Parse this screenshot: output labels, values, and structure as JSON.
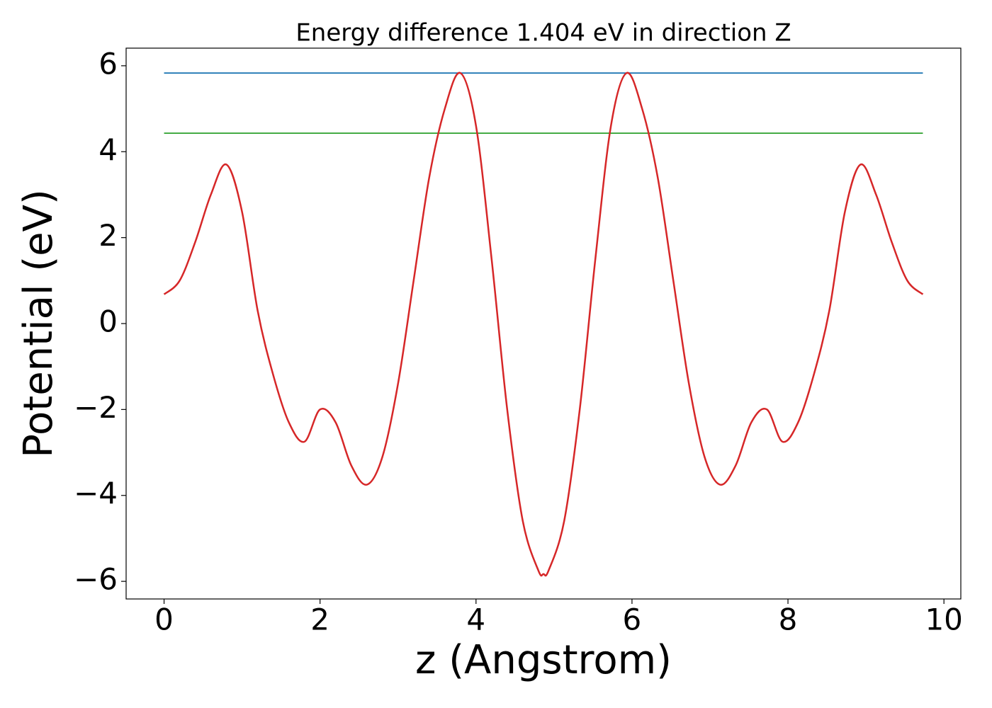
{
  "chart_data": {
    "type": "line",
    "title": "Energy difference 1.404 eV in direction Z",
    "x_label": "z (Angstrom)",
    "y_label": "Potential (eV)",
    "xlim": [
      -0.4865,
      10.2165
    ],
    "ylim": [
      -6.41,
      6.41
    ],
    "xticks": [
      0,
      2,
      4,
      6,
      8,
      10
    ],
    "yticks": [
      {
        "value": -6,
        "label": "−6"
      },
      {
        "value": -4,
        "label": "−4"
      },
      {
        "value": -2,
        "label": "−2"
      },
      0,
      2,
      4,
      6
    ],
    "grid": false,
    "series": [
      {
        "color": "#1f77b4",
        "x": [
          0,
          9.73
        ],
        "values": [
          5.83,
          5.83
        ]
      },
      {
        "color": "#2ca02c",
        "x": [
          0,
          9.73
        ],
        "values": [
          4.43,
          4.43
        ]
      },
      {
        "color": "#d62728",
        "x": [
          0,
          0.2,
          0.4,
          0.6,
          0.8,
          1.0,
          1.2,
          1.4,
          1.6,
          1.8,
          2.0,
          2.2,
          2.4,
          2.6,
          2.8,
          3.0,
          3.2,
          3.4,
          3.6,
          3.8,
          4.0,
          4.2,
          4.4,
          4.6,
          4.8,
          4.865,
          4.93,
          5.13,
          5.33,
          5.53,
          5.73,
          5.93,
          6.13,
          6.33,
          6.53,
          6.73,
          6.93,
          7.13,
          7.33,
          7.53,
          7.73,
          7.93,
          8.13,
          8.33,
          8.53,
          8.73,
          8.93,
          9.13,
          9.33,
          9.53,
          9.73
        ],
        "values": [
          0.68,
          1.0,
          1.9,
          3.0,
          3.7,
          2.6,
          0.3,
          -1.2,
          -2.3,
          -2.75,
          -2.0,
          -2.3,
          -3.3,
          -3.75,
          -3.1,
          -1.4,
          1.0,
          3.4,
          5.0,
          5.83,
          4.6,
          1.5,
          -2.0,
          -4.6,
          -5.75,
          -5.83,
          -5.75,
          -4.6,
          -2.0,
          1.5,
          4.6,
          5.83,
          5.0,
          3.4,
          1.0,
          -1.4,
          -3.1,
          -3.75,
          -3.3,
          -2.3,
          -2.0,
          -2.75,
          -2.3,
          -1.2,
          0.3,
          2.6,
          3.7,
          3.0,
          1.9,
          1.0,
          0.68
        ]
      }
    ]
  }
}
